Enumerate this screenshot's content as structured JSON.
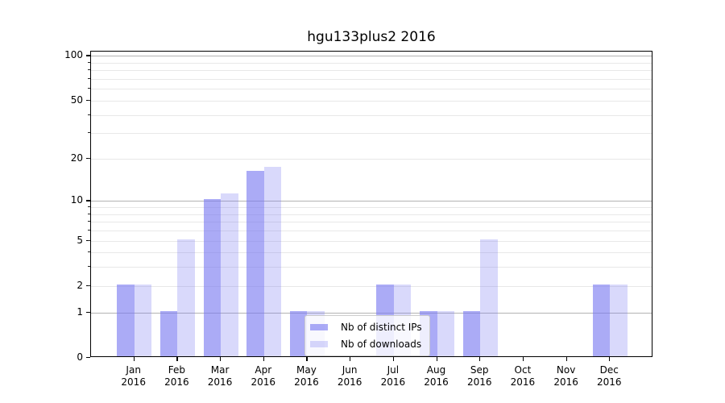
{
  "title": "hgu133plus2 2016",
  "chart_data": {
    "type": "bar",
    "title": "hgu133plus2 2016",
    "categories": [
      "Jan 2016",
      "Feb 2016",
      "Mar 2016",
      "Apr 2016",
      "May 2016",
      "Jun 2016",
      "Jul 2016",
      "Aug 2016",
      "Sep 2016",
      "Oct 2016",
      "Nov 2016",
      "Dec 2016"
    ],
    "months": [
      "Jan",
      "Feb",
      "Mar",
      "Apr",
      "May",
      "Jun",
      "Jul",
      "Aug",
      "Sep",
      "Oct",
      "Nov",
      "Dec"
    ],
    "year": "2016",
    "series": [
      {
        "name": "Nb of distinct IPs",
        "color": "rgba(120,120,240,0.62)",
        "values": [
          2,
          1,
          10,
          16,
          1,
          0,
          2,
          1,
          1,
          0,
          0,
          2
        ]
      },
      {
        "name": "Nb of downloads",
        "color": "rgba(120,120,240,0.28)",
        "values": [
          2,
          5,
          11,
          17,
          1,
          0,
          2,
          1,
          5,
          0,
          0,
          2
        ]
      }
    ],
    "xlabel": "",
    "ylabel": "",
    "yscale": "log1p",
    "ylim": [
      0,
      107
    ],
    "yticks": [
      0,
      1,
      2,
      5,
      10,
      20,
      50,
      100
    ],
    "major_gridlines": [
      1,
      10,
      100
    ],
    "minor_gridlines": [
      2,
      3,
      4,
      5,
      6,
      7,
      8,
      9,
      20,
      30,
      40,
      50,
      60,
      70,
      80,
      90
    ],
    "grid": "on",
    "legend_position": "lower center-left inside plot",
    "colors": {
      "bar_base": "#7878f0",
      "grid_major": "#b3b3b3",
      "grid_minor": "#e8e8e8",
      "axis": "#000000",
      "background": "#ffffff"
    }
  }
}
